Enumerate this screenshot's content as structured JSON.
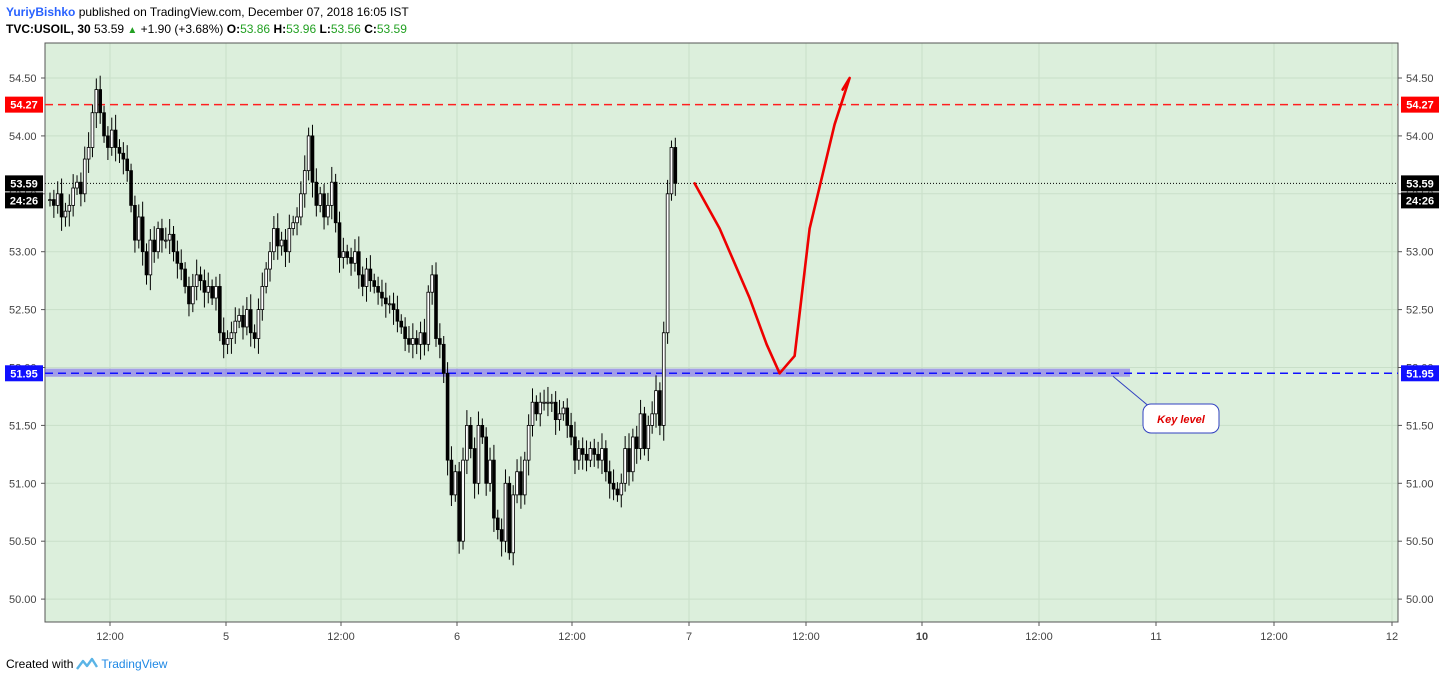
{
  "header": {
    "author": "YuriyBishko",
    "published_text": "published on TradingView.com, December 07, 2018 16:05 IST",
    "symbol": "TVC:USOIL, 30",
    "last": "53.59",
    "change": "+1.90 (+3.68%)",
    "o_label": "O:",
    "o_val": "53.86",
    "h_label": "H:",
    "h_val": "53.96",
    "l_label": "L:",
    "l_val": "53.56",
    "c_label": "C:",
    "c_val": "53.59"
  },
  "footer": {
    "created_with": "Created with",
    "brand": "TradingView"
  },
  "chart_data": {
    "type": "candlestick",
    "timeframe": "30",
    "y_ticks": [
      "54.50",
      "54.00",
      "53.50",
      "53.00",
      "52.50",
      "52.00",
      "51.50",
      "51.00",
      "50.50",
      "50.00"
    ],
    "ylim": [
      49.85,
      54.88
    ],
    "x_ticks": [
      "12:00",
      "5",
      "12:00",
      "6",
      "12:00",
      "7",
      "12:00",
      "10",
      "12:00",
      "11",
      "12:00",
      "12"
    ],
    "price_labels": [
      {
        "value": "54.27",
        "color": "#ff0000"
      },
      {
        "value": "53.59",
        "color": "#000000"
      },
      {
        "value": "24:26",
        "color": "#000000"
      },
      {
        "value": "51.95",
        "color": "#1010ff"
      }
    ],
    "levels": [
      {
        "price": 54.27,
        "color": "#ff2020",
        "style": "dashed"
      },
      {
        "price": 53.59,
        "color": "#000000",
        "style": "dotted"
      },
      {
        "price": 51.95,
        "color": "#1010ff",
        "style": "dashed",
        "zone": [
          51.92,
          51.99
        ]
      }
    ],
    "annotation": {
      "text": "Key level",
      "color": "#e00000"
    },
    "background": "#dcefdc",
    "closes": [
      53.45,
      53.4,
      53.5,
      53.3,
      53.35,
      53.4,
      53.55,
      53.6,
      53.5,
      53.8,
      53.9,
      54.2,
      54.4,
      54.2,
      54.0,
      53.9,
      54.05,
      53.9,
      53.85,
      53.8,
      53.7,
      53.4,
      53.1,
      53.3,
      53.0,
      52.8,
      53.1,
      53.0,
      53.2,
      53.1,
      53.1,
      53.15,
      53.0,
      52.9,
      52.85,
      52.7,
      52.55,
      52.7,
      52.8,
      52.75,
      52.65,
      52.7,
      52.6,
      52.7,
      52.3,
      52.2,
      52.25,
      52.3,
      52.4,
      52.45,
      52.35,
      52.5,
      52.3,
      52.25,
      52.5,
      52.7,
      52.85,
      53.0,
      53.2,
      53.05,
      53.1,
      53.0,
      53.2,
      53.25,
      53.3,
      53.5,
      53.7,
      54.0,
      53.6,
      53.4,
      53.5,
      53.3,
      53.4,
      53.6,
      53.25,
      52.95,
      53.0,
      52.95,
      52.9,
      53.0,
      52.8,
      52.7,
      52.85,
      52.75,
      52.7,
      52.65,
      52.6,
      52.55,
      52.55,
      52.5,
      52.4,
      52.35,
      52.25,
      52.2,
      52.25,
      52.2,
      52.3,
      52.2,
      52.65,
      52.8,
      52.25,
      52.2,
      51.95,
      51.2,
      50.9,
      51.1,
      50.5,
      51.2,
      51.5,
      51.3,
      51.0,
      51.5,
      51.4,
      51.0,
      51.2,
      50.7,
      50.6,
      50.5,
      51.0,
      50.4,
      50.9,
      51.1,
      50.9,
      51.2,
      51.5,
      51.7,
      51.6,
      51.7,
      51.7,
      51.7,
      51.7,
      51.55,
      51.6,
      51.65,
      51.5,
      51.4,
      51.2,
      51.3,
      51.25,
      51.2,
      51.3,
      51.25,
      51.2,
      51.3,
      51.1,
      51.0,
      50.95,
      50.9,
      51.0,
      51.3,
      51.1,
      51.4,
      51.3,
      51.6,
      51.3,
      51.5,
      51.6,
      51.8,
      51.5,
      52.3,
      53.5,
      53.9,
      53.59
    ],
    "forecast": [
      [
        51.95,
        53.59
      ],
      [
        51.95,
        51.95
      ],
      [
        54.5,
        54.27
      ]
    ]
  }
}
